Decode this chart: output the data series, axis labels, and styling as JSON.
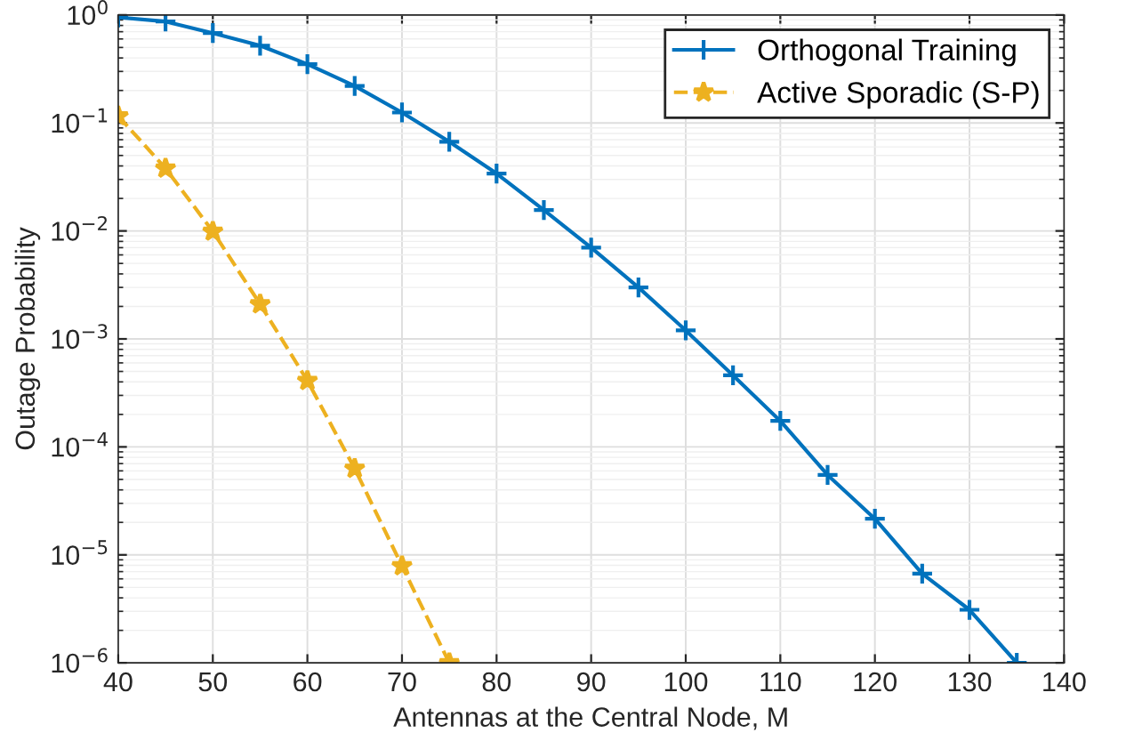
{
  "chart_data": {
    "type": "line",
    "xlabel": "Antennas at the Central Node, M",
    "ylabel": "Outage Probability",
    "x": [
      40,
      45,
      50,
      55,
      60,
      65,
      70,
      75,
      80,
      85,
      90,
      95,
      100,
      105,
      110,
      115,
      120,
      125,
      130,
      135
    ],
    "series": [
      {
        "name": "Orthogonal Training",
        "color": "#0072bd",
        "marker": "cross",
        "line_style": "solid",
        "values": [
          0.95,
          0.87,
          0.68,
          0.52,
          0.35,
          0.22,
          0.125,
          0.067,
          0.034,
          0.0156,
          0.007,
          0.003,
          0.0012,
          0.00046,
          0.000174,
          5.5e-05,
          2.16e-05,
          6.7e-06,
          3.1e-06,
          1e-06
        ]
      },
      {
        "name": "Active Sporadic (S-P)",
        "color": "#edb120",
        "marker": "star",
        "line_style": "dashed",
        "x": [
          40,
          45,
          50,
          55,
          60,
          65,
          70,
          75
        ],
        "values": [
          0.116,
          0.038,
          0.0099,
          0.0021,
          0.00041,
          6.3e-05,
          7.9e-06,
          1e-06
        ]
      }
    ],
    "log": "y",
    "xlim": [
      40,
      140
    ],
    "xticks": [
      40,
      50,
      60,
      70,
      80,
      90,
      100,
      110,
      120,
      130,
      140
    ],
    "ylim": [
      1e-06,
      1
    ],
    "yticks": [
      {
        "value": 1e-06,
        "label": "10$^{−6}$"
      },
      {
        "value": 1e-05,
        "label": "10$^{−5}$"
      },
      {
        "value": 0.0001,
        "label": "10$^{−4}$"
      },
      {
        "value": 0.001,
        "label": "10$^{−3}$"
      },
      {
        "value": 0.01,
        "label": "10$^{−2}$"
      },
      {
        "value": 0.1,
        "label": "10$^{−1}$"
      },
      {
        "value": 1,
        "label": "10$^{0}$"
      }
    ],
    "grid": true,
    "legend": "top right"
  }
}
